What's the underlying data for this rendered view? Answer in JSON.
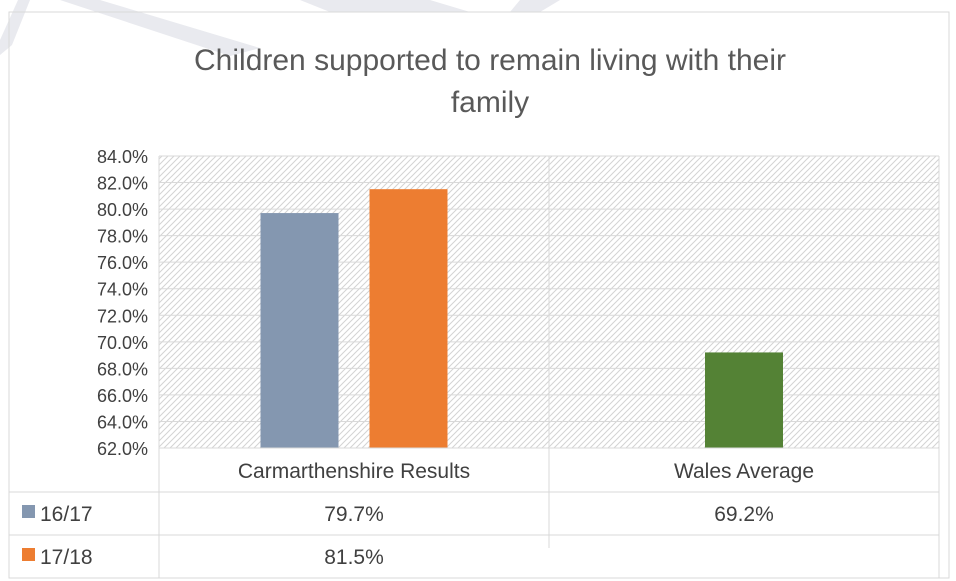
{
  "chart_data": {
    "type": "bar",
    "title": "Children supported to remain living with their family",
    "title_lines": [
      "Children supported to remain living with their",
      "family"
    ],
    "categories": [
      "Carmarthenshire Results",
      "Wales Average"
    ],
    "ylim": [
      0.62,
      0.84
    ],
    "yticks": [
      "84.0%",
      "82.0%",
      "80.0%",
      "78.0%",
      "76.0%",
      "74.0%",
      "72.0%",
      "70.0%",
      "68.0%",
      "66.0%",
      "64.0%",
      "62.0%"
    ],
    "series": [
      {
        "name": "16/17",
        "colors": [
          "#8497b0",
          "#548235"
        ],
        "values": [
          0.797,
          0.692
        ],
        "labels": [
          "79.7%",
          "69.2%"
        ]
      },
      {
        "name": "17/18",
        "colors": [
          "#ed7d31",
          "#ed7d31"
        ],
        "values": [
          0.815,
          null
        ],
        "labels": [
          "81.5%",
          ""
        ]
      }
    ],
    "legend": "data-table"
  }
}
